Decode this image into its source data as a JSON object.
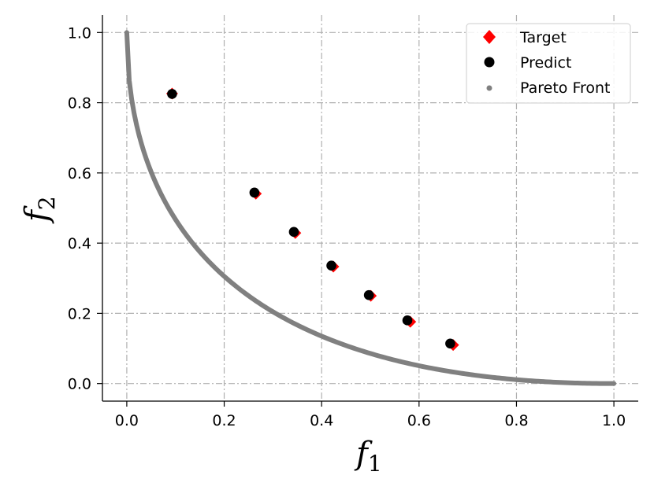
{
  "chart_data": {
    "type": "scatter",
    "xlabel": "f",
    "xlabel_sub": "1",
    "ylabel": "f",
    "ylabel_sub": "2",
    "xlim": [
      -0.05,
      1.05
    ],
    "ylim": [
      -0.05,
      1.05
    ],
    "xticks": [
      "0.0",
      "0.2",
      "0.4",
      "0.6",
      "0.8",
      "1.0"
    ],
    "yticks": [
      "0.0",
      "0.2",
      "0.4",
      "0.6",
      "0.8",
      "1.0"
    ],
    "grid": true,
    "legend_position": "top-right",
    "series": [
      {
        "name": "Target",
        "marker": "diamond",
        "color": "#ff0000",
        "x": [
          0.093,
          0.265,
          0.346,
          0.424,
          0.501,
          0.582,
          0.67
        ],
        "y": [
          0.826,
          0.541,
          0.429,
          0.333,
          0.25,
          0.176,
          0.11
        ]
      },
      {
        "name": "Predict",
        "marker": "circle",
        "color": "#000000",
        "x": [
          0.093,
          0.262,
          0.343,
          0.42,
          0.497,
          0.576,
          0.664
        ],
        "y": [
          0.825,
          0.544,
          0.432,
          0.336,
          0.252,
          0.18,
          0.114
        ]
      },
      {
        "name": "Pareto Front",
        "marker": "point",
        "color": "#808080",
        "curve": "f2 = (1 - sqrt(f1))^2",
        "x_range": [
          0,
          1
        ]
      }
    ]
  }
}
